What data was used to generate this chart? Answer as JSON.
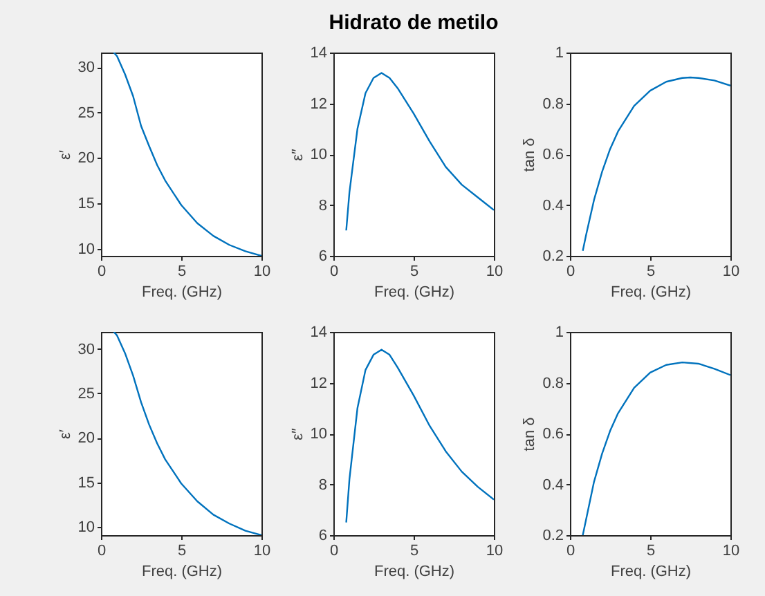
{
  "chart_data": [
    {
      "type": "line",
      "xlabel": "Freq. (GHz)",
      "ylabel": "ε′",
      "xlim": [
        0,
        10
      ],
      "xticks": [
        0,
        5,
        10
      ],
      "ylim": [
        9.2,
        31.6
      ],
      "yticks": [
        10,
        15,
        20,
        25,
        30
      ],
      "grid": false,
      "x": [
        0.8,
        1,
        1.5,
        2,
        2.5,
        3,
        3.5,
        4,
        5,
        6,
        7,
        8,
        9,
        10
      ],
      "series": [
        {
          "color": "#0072bd",
          "values": [
            31.6,
            31.2,
            29.2,
            26.8,
            23.5,
            21.3,
            19.2,
            17.5,
            14.8,
            12.8,
            11.4,
            10.4,
            9.7,
            9.2
          ]
        }
      ]
    },
    {
      "type": "line",
      "title": "Hidrato de metilo",
      "xlabel": "Freq. (GHz)",
      "ylabel": "ε″",
      "xlim": [
        0,
        10
      ],
      "xticks": [
        0,
        5,
        10
      ],
      "ylim": [
        6,
        14
      ],
      "yticks": [
        6,
        8,
        10,
        12,
        14
      ],
      "grid": false,
      "x": [
        0.8,
        1,
        1.5,
        2,
        2.5,
        3,
        3.5,
        4,
        5,
        6,
        7,
        8,
        9,
        10
      ],
      "series": [
        {
          "color": "#0072bd",
          "values": [
            7.0,
            8.5,
            11.0,
            12.4,
            13.0,
            13.2,
            13.0,
            12.6,
            11.6,
            10.5,
            9.5,
            8.8,
            8.3,
            7.8
          ]
        }
      ]
    },
    {
      "type": "line",
      "xlabel": "Freq. (GHz)",
      "ylabel": "tan δ",
      "xlim": [
        0,
        10
      ],
      "xticks": [
        0,
        5,
        10
      ],
      "ylim": [
        0.2,
        1
      ],
      "yticks": [
        0.2,
        0.4,
        0.6,
        0.8,
        {
          "value": 1,
          "label": "1"
        }
      ],
      "grid": false,
      "x": [
        0.8,
        1,
        1.5,
        2,
        2.5,
        3,
        4,
        5,
        6,
        7,
        7.5,
        8,
        9,
        10
      ],
      "series": [
        {
          "color": "#0072bd",
          "values": [
            0.22,
            0.28,
            0.42,
            0.53,
            0.62,
            0.69,
            0.79,
            0.85,
            0.885,
            0.9,
            0.902,
            0.9,
            0.89,
            0.87
          ]
        }
      ]
    },
    {
      "type": "line",
      "xlabel": "Freq. (GHz)",
      "ylabel": "ε′",
      "xlim": [
        0,
        10
      ],
      "xticks": [
        0,
        5,
        10
      ],
      "ylim": [
        9.1,
        31.9
      ],
      "yticks": [
        10,
        15,
        20,
        25,
        30
      ],
      "grid": false,
      "x": [
        0.8,
        1,
        1.5,
        2,
        2.5,
        3,
        3.5,
        4,
        5,
        6,
        7,
        8,
        9,
        10
      ],
      "series": [
        {
          "color": "#0072bd",
          "values": [
            31.9,
            31.5,
            29.5,
            27,
            24,
            21.5,
            19.4,
            17.6,
            14.9,
            12.9,
            11.4,
            10.4,
            9.6,
            9.1
          ]
        }
      ]
    },
    {
      "type": "line",
      "xlabel": "Freq. (GHz)",
      "ylabel": "ε″",
      "xlim": [
        0,
        10
      ],
      "xticks": [
        0,
        5,
        10
      ],
      "ylim": [
        6,
        14
      ],
      "yticks": [
        6,
        8,
        10,
        12,
        14
      ],
      "grid": false,
      "x": [
        0.8,
        1,
        1.5,
        2,
        2.5,
        3,
        3.5,
        4,
        5,
        6,
        7,
        8,
        9,
        10
      ],
      "series": [
        {
          "color": "#0072bd",
          "values": [
            6.5,
            8.2,
            11.0,
            12.5,
            13.1,
            13.3,
            13.1,
            12.6,
            11.5,
            10.3,
            9.3,
            8.5,
            7.9,
            7.4
          ]
        }
      ]
    },
    {
      "type": "line",
      "xlabel": "Freq. (GHz)",
      "ylabel": "tan δ",
      "xlim": [
        0,
        10
      ],
      "xticks": [
        0,
        5,
        10
      ],
      "ylim": [
        0.2,
        1
      ],
      "yticks": [
        0.2,
        0.4,
        0.6,
        0.8,
        {
          "value": 1,
          "label": "1"
        }
      ],
      "grid": false,
      "x": [
        0.8,
        1,
        1.5,
        2,
        2.5,
        3,
        4,
        5,
        6,
        7,
        8,
        9,
        10
      ],
      "series": [
        {
          "color": "#0072bd",
          "values": [
            0.2,
            0.26,
            0.41,
            0.52,
            0.61,
            0.68,
            0.78,
            0.84,
            0.87,
            0.88,
            0.875,
            0.855,
            0.83
          ]
        }
      ]
    }
  ]
}
